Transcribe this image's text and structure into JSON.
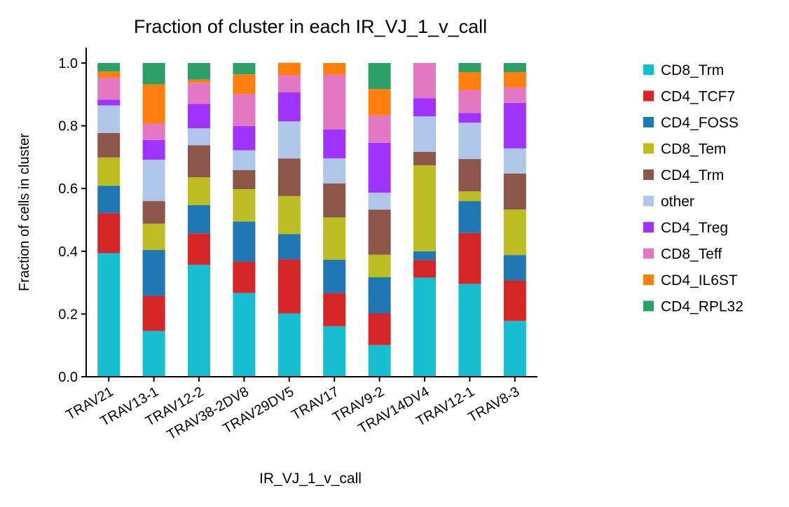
{
  "chart_data": {
    "type": "bar",
    "stacked": true,
    "title": "Fraction of cluster in each IR_VJ_1_v_call",
    "xlabel": "IR_VJ_1_v_call",
    "ylabel": "Fraction of cells in cluster",
    "ylim": [
      0,
      1.05
    ],
    "yticks": [
      "0.0",
      "0.2",
      "0.4",
      "0.6",
      "0.8",
      "1.0"
    ],
    "grid": false,
    "legend_position": "right",
    "categories": [
      "TRAV21",
      "TRAV13-1",
      "TRAV12-2",
      "TRAV38-2DV8",
      "TRAV29DV5",
      "TRAV17",
      "TRAV9-2",
      "TRAV14DV4",
      "TRAV12-1",
      "TRAV8-3"
    ],
    "series": [
      {
        "name": "CD8_Trm",
        "color": "#17becf",
        "values": [
          0.394,
          0.146,
          0.357,
          0.267,
          0.202,
          0.161,
          0.101,
          0.316,
          0.296,
          0.178
        ]
      },
      {
        "name": "CD4_TCF7",
        "color": "#d62728",
        "values": [
          0.128,
          0.112,
          0.1,
          0.1,
          0.172,
          0.106,
          0.101,
          0.056,
          0.162,
          0.129
        ]
      },
      {
        "name": "CD4_FOSS",
        "color": "#1f77b4",
        "values": [
          0.087,
          0.146,
          0.09,
          0.128,
          0.081,
          0.106,
          0.115,
          0.028,
          0.102,
          0.081
        ]
      },
      {
        "name": "CD8_Tem",
        "color": "#bcbd22",
        "values": [
          0.09,
          0.084,
          0.089,
          0.103,
          0.121,
          0.135,
          0.072,
          0.274,
          0.031,
          0.145
        ]
      },
      {
        "name": "CD4_Trm",
        "color": "#8c564b",
        "values": [
          0.078,
          0.072,
          0.102,
          0.061,
          0.12,
          0.108,
          0.144,
          0.043,
          0.103,
          0.115
        ]
      },
      {
        "name": "other",
        "color": "#aec7e8",
        "values": [
          0.088,
          0.132,
          0.054,
          0.063,
          0.118,
          0.08,
          0.054,
          0.113,
          0.116,
          0.08
        ]
      },
      {
        "name": "CD4_Treg",
        "color": "#a033ff",
        "values": [
          0.018,
          0.063,
          0.078,
          0.077,
          0.093,
          0.092,
          0.159,
          0.058,
          0.031,
          0.145
        ]
      },
      {
        "name": "CD8_Teff",
        "color": "#e377c2",
        "values": [
          0.07,
          0.052,
          0.067,
          0.102,
          0.054,
          0.175,
          0.087,
          0.112,
          0.073,
          0.049
        ]
      },
      {
        "name": "CD4_IL6ST",
        "color": "#ff7f0e",
        "values": [
          0.02,
          0.125,
          0.01,
          0.063,
          0.04,
          0.037,
          0.084,
          0.0,
          0.057,
          0.049
        ]
      },
      {
        "name": "CD4_RPL32",
        "color": "#2ca066",
        "values": [
          0.027,
          0.068,
          0.053,
          0.036,
          0.0,
          0.0,
          0.083,
          0.0,
          0.029,
          0.029
        ]
      }
    ]
  }
}
